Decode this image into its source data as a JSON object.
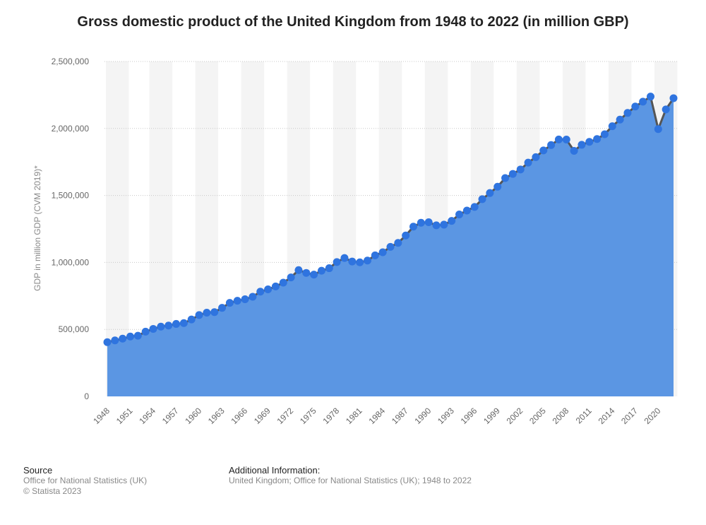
{
  "chart_data": {
    "type": "area",
    "title": "Gross domestic product of the United Kingdom from 1948 to 2022 (in million GBP)",
    "xlabel": "",
    "ylabel": "GDP in million GDP (CVM 2019)*",
    "ylim": [
      0,
      2500000
    ],
    "yticks": [
      "0",
      "500,000",
      "1,000,000",
      "1,500,000",
      "2,000,000",
      "2,500,000"
    ],
    "ytick_values": [
      0,
      500000,
      1000000,
      1500000,
      2000000,
      2500000
    ],
    "xtick_labels": [
      "1948",
      "1951",
      "1954",
      "1957",
      "1960",
      "1963",
      "1966",
      "1969",
      "1972",
      "1975",
      "1978",
      "1981",
      "1984",
      "1987",
      "1990",
      "1993",
      "1996",
      "1999",
      "2002",
      "2005",
      "2008",
      "2011",
      "2014",
      "2017",
      "2020"
    ],
    "grid": true,
    "series": [
      {
        "x": [
          1948,
          1949,
          1950,
          1951,
          1952,
          1953,
          1954,
          1955,
          1956,
          1957,
          1958,
          1959,
          1960,
          1961,
          1962,
          1963,
          1964,
          1965,
          1966,
          1967,
          1968,
          1969,
          1970,
          1971,
          1972,
          1973,
          1974,
          1975,
          1976,
          1977,
          1978,
          1979,
          1980,
          1981,
          1982,
          1983,
          1984,
          1985,
          1986,
          1987,
          1988,
          1989,
          1990,
          1991,
          1992,
          1993,
          1994,
          1995,
          1996,
          1997,
          1998,
          1999,
          2000,
          2001,
          2002,
          2003,
          2004,
          2005,
          2006,
          2007,
          2008,
          2009,
          2010,
          2011,
          2012,
          2013,
          2014,
          2015,
          2016,
          2017,
          2018,
          2019,
          2020,
          2021,
          2022
        ],
        "values": [
          405000,
          418000,
          431000,
          447000,
          453000,
          483000,
          504000,
          521000,
          529000,
          541000,
          547000,
          574000,
          607000,
          625000,
          629000,
          661000,
          698000,
          714000,
          725000,
          744000,
          782000,
          799000,
          821000,
          849000,
          888000,
          943000,
          922000,
          909000,
          938000,
          957000,
          1003000,
          1033000,
          1007000,
          1001000,
          1014000,
          1053000,
          1076000,
          1116000,
          1146000,
          1201000,
          1267000,
          1296000,
          1300000,
          1277000,
          1282000,
          1310000,
          1358000,
          1387000,
          1414000,
          1472000,
          1518000,
          1565000,
          1630000,
          1661000,
          1694000,
          1745000,
          1786000,
          1836000,
          1876000,
          1918000,
          1917000,
          1833000,
          1878000,
          1900000,
          1921000,
          1957000,
          2017000,
          2066000,
          2116000,
          2164000,
          2200000,
          2238000,
          1995000,
          2142000,
          2226000
        ]
      }
    ],
    "colors": {
      "area": "#5b96e3",
      "line": "#555555",
      "marker": "#2f74df",
      "band": "#f4f4f4"
    }
  },
  "footer": {
    "source_heading": "Source",
    "source_line1": "Office for National Statistics (UK)",
    "source_line2": "© Statista 2023",
    "info_heading": "Additional Information:",
    "info_line1": "United Kingdom; Office for National Statistics (UK); 1948 to 2022"
  }
}
